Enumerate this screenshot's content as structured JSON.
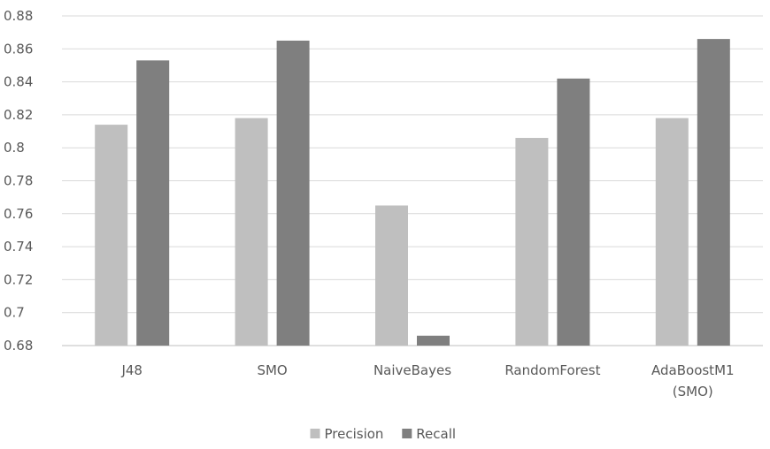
{
  "chart_data": {
    "type": "bar",
    "title": "",
    "xlabel": "",
    "ylabel": "",
    "categories": [
      [
        "J48"
      ],
      [
        "SMO"
      ],
      [
        "NaiveBayes"
      ],
      [
        "RandomForest"
      ],
      [
        "AdaBoostM1",
        "(SMO)"
      ]
    ],
    "series": [
      {
        "name": "Precision",
        "color": "#bfbfbf",
        "values": [
          0.814,
          0.818,
          0.765,
          0.806,
          0.818
        ]
      },
      {
        "name": "Recall",
        "color": "#7f7f7f",
        "values": [
          0.853,
          0.865,
          0.686,
          0.842,
          0.866
        ]
      }
    ],
    "ylim": [
      0.68,
      0.88
    ],
    "yticks": [
      "0.68",
      "0.7",
      "0.72",
      "0.74",
      "0.76",
      "0.78",
      "0.8",
      "0.82",
      "0.84",
      "0.86",
      "0.88"
    ],
    "grid": true,
    "legend": "bottom"
  }
}
